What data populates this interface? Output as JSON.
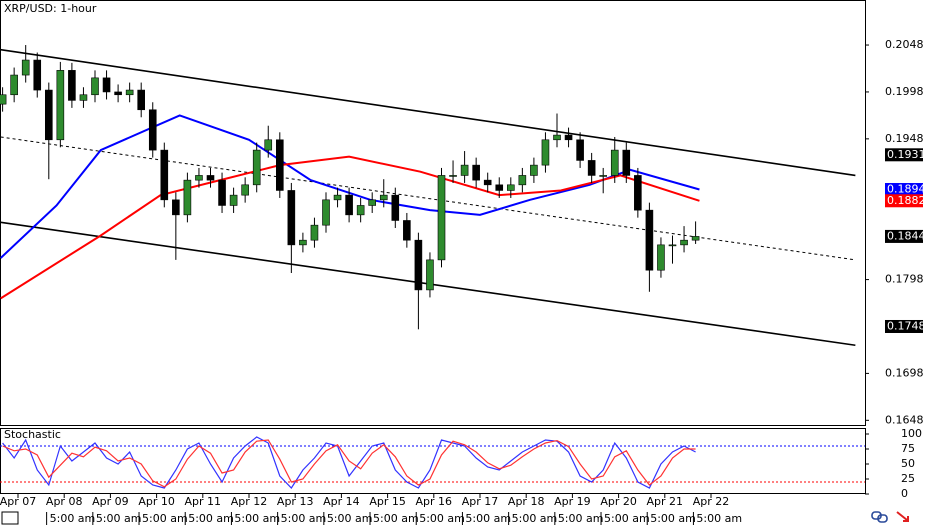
{
  "chart_data": {
    "type": "candlestick",
    "title": "XRP/USD: 1-hour",
    "x": [
      -8,
      -2,
      4,
      10,
      16,
      22,
      28,
      34,
      40,
      46,
      52,
      58,
      64,
      70,
      76,
      82,
      88,
      94,
      100,
      106,
      112,
      118,
      124,
      130,
      136,
      142,
      148,
      154,
      160,
      166,
      172,
      178,
      184,
      190,
      196,
      202,
      208,
      214,
      220,
      226,
      232,
      238,
      244,
      250,
      256,
      262,
      268,
      274,
      280,
      286,
      292,
      298,
      304,
      310,
      316,
      322,
      328,
      334,
      340,
      346,
      352
    ],
    "open": [
      0.1985,
      0.1995,
      0.2016,
      0.2032,
      0.2,
      0.1947,
      0.2021,
      0.1989,
      0.1995,
      0.2013,
      0.1998,
      0.1995,
      0.2,
      0.1979,
      0.1936,
      0.1883,
      0.1867,
      0.1904,
      0.1909,
      0.1904,
      0.1877,
      0.1888,
      0.1899,
      0.1936,
      0.1947,
      0.1893,
      0.1835,
      0.184,
      0.1856,
      0.1883,
      0.1888,
      0.1867,
      0.1877,
      0.1883,
      0.1888,
      0.1861,
      0.184,
      0.1787,
      0.1819,
      0.1909,
      0.1909,
      0.192,
      0.1904,
      0.1899,
      0.1893,
      0.1899,
      0.1909,
      0.192,
      0.1947,
      0.1952,
      0.1947,
      0.1925,
      0.1909,
      0.1909,
      0.1936,
      0.1909,
      0.1872,
      0.1808,
      0.1835,
      0.1835,
      0.184
    ],
    "high": [
      0.2003,
      0.2024,
      0.2048,
      0.204,
      0.2008,
      0.203,
      0.2029,
      0.2003,
      0.2021,
      0.2021,
      0.2006,
      0.2008,
      0.2008,
      0.1987,
      0.1944,
      0.1891,
      0.1912,
      0.1917,
      0.1917,
      0.1912,
      0.1896,
      0.1907,
      0.1944,
      0.1962,
      0.1955,
      0.1901,
      0.1848,
      0.1864,
      0.1891,
      0.1896,
      0.1896,
      0.1885,
      0.1891,
      0.1905,
      0.1896,
      0.1869,
      0.1848,
      0.1827,
      0.1917,
      0.1925,
      0.1935,
      0.1928,
      0.1912,
      0.1907,
      0.1907,
      0.1917,
      0.1928,
      0.1955,
      0.1975,
      0.196,
      0.1955,
      0.1933,
      0.1917,
      0.195,
      0.1944,
      0.1917,
      0.188,
      0.1843,
      0.1845,
      0.1855,
      0.186
    ],
    "low": [
      0.1977,
      0.1987,
      0.2008,
      0.1992,
      0.1905,
      0.1939,
      0.1981,
      0.1981,
      0.1987,
      0.199,
      0.1987,
      0.1987,
      0.1971,
      0.1928,
      0.1875,
      0.1819,
      0.1859,
      0.1896,
      0.1896,
      0.1869,
      0.1869,
      0.188,
      0.1891,
      0.1928,
      0.1885,
      0.1805,
      0.1827,
      0.1832,
      0.1848,
      0.1875,
      0.1859,
      0.1859,
      0.1869,
      0.1875,
      0.1853,
      0.1832,
      0.1745,
      0.1779,
      0.1811,
      0.1901,
      0.1901,
      0.1896,
      0.1891,
      0.1885,
      0.1885,
      0.1891,
      0.1901,
      0.1912,
      0.1939,
      0.1939,
      0.1917,
      0.1901,
      0.189,
      0.1901,
      0.1901,
      0.1864,
      0.1785,
      0.18,
      0.1815,
      0.1827,
      0.1836
    ],
    "close": [
      0.1995,
      0.2016,
      0.2032,
      0.2,
      0.1947,
      0.2021,
      0.1989,
      0.1995,
      0.2013,
      0.1998,
      0.1995,
      0.2,
      0.1979,
      0.1936,
      0.1883,
      0.1867,
      0.1904,
      0.1909,
      0.1904,
      0.1877,
      0.1888,
      0.1899,
      0.1936,
      0.1947,
      0.1893,
      0.1835,
      0.184,
      0.1856,
      0.1883,
      0.1888,
      0.1867,
      0.1877,
      0.1883,
      0.1888,
      0.1861,
      0.184,
      0.1787,
      0.1819,
      0.1909,
      0.1909,
      0.192,
      0.1904,
      0.1899,
      0.1893,
      0.1899,
      0.1909,
      0.192,
      0.1947,
      0.1952,
      0.1947,
      0.1925,
      0.1909,
      0.1909,
      0.1936,
      0.1909,
      0.1872,
      0.1808,
      0.1835,
      0.1835,
      0.184,
      0.1844
    ],
    "up_color": "#2e8b2e",
    "down_color": "#000000",
    "xlim": [
      -9.35,
      440
    ],
    "ylim": [
      0.1643,
      0.2096
    ],
    "yticks": [
      0.2048,
      0.1998,
      0.1948,
      0.1798,
      0.1698,
      0.1648
    ],
    "xticks": [
      {
        "value": 0,
        "label": "Apr 07"
      },
      {
        "value": 24,
        "label": "Apr 08"
      },
      {
        "value": 48,
        "label": "Apr 09"
      },
      {
        "value": 72,
        "label": "Apr 10"
      },
      {
        "value": 96,
        "label": "Apr 11"
      },
      {
        "value": 120,
        "label": "Apr 12"
      },
      {
        "value": 144,
        "label": "Apr 13"
      },
      {
        "value": 168,
        "label": "Apr 14"
      },
      {
        "value": 192,
        "label": "Apr 15"
      },
      {
        "value": 216,
        "label": "Apr 16"
      },
      {
        "value": 240,
        "label": "Apr 17"
      },
      {
        "value": 264,
        "label": "Apr 18"
      },
      {
        "value": 288,
        "label": "Apr 19"
      },
      {
        "value": 312,
        "label": "Apr 20"
      },
      {
        "value": 336,
        "label": "Apr 21"
      },
      {
        "value": 360,
        "label": "Apr 22"
      }
    ],
    "time_ticks": [
      {
        "value": 5,
        "label": "5:00 am"
      },
      {
        "value": 29,
        "label": "5:00 am"
      },
      {
        "value": 53,
        "label": "5:00 am"
      },
      {
        "value": 77,
        "label": "5:00 am"
      },
      {
        "value": 101,
        "label": "5:00 am"
      },
      {
        "value": 125,
        "label": "5:00 am"
      },
      {
        "value": 149,
        "label": "5:00 am"
      },
      {
        "value": 173,
        "label": "5:00 am"
      },
      {
        "value": 197,
        "label": "5:00 am"
      },
      {
        "value": 221,
        "label": "5:00 am"
      },
      {
        "value": 245,
        "label": "5:00 am"
      },
      {
        "value": 269,
        "label": "5:00 am"
      },
      {
        "value": 293,
        "label": "5:00 am"
      },
      {
        "value": 317,
        "label": "5:00 am"
      },
      {
        "value": 341,
        "label": "5:00 am"
      }
    ],
    "overlays": [
      {
        "color": "#0000ff",
        "x": [
          -9,
          20,
          43,
          84,
          120,
          152,
          183,
          214,
          240,
          266,
          297,
          318,
          354
        ],
        "values": [
          0.1821,
          0.1877,
          0.1936,
          0.1973,
          0.1947,
          0.1904,
          0.1883,
          0.1872,
          0.1867,
          0.1883,
          0.1899,
          0.1915,
          0.1894
        ]
      },
      {
        "color": "#ff0000",
        "x": [
          -9,
          43,
          74,
          105,
          136,
          172,
          209,
          250,
          282,
          313,
          354
        ],
        "values": [
          0.1778,
          0.1845,
          0.1888,
          0.1904,
          0.192,
          0.1929,
          0.1913,
          0.1888,
          0.1893,
          0.1909,
          0.1882
        ]
      }
    ],
    "trendlines": [
      {
        "style": "solid",
        "x": [
          -9,
          435
        ],
        "values": [
          0.2043,
          0.1909
        ]
      },
      {
        "style": "dotted",
        "x": [
          -9,
          435
        ],
        "values": [
          0.195,
          0.1819
        ]
      },
      {
        "style": "solid",
        "x": [
          -9,
          435
        ],
        "values": [
          0.1859,
          0.1728
        ]
      }
    ],
    "price_labels": [
      {
        "value": 0.1931,
        "color": "#000000"
      },
      {
        "value": 0.1894,
        "color": "#0000ff"
      },
      {
        "value": 0.1882,
        "color": "#ff0000"
      },
      {
        "value": 0.1844,
        "color": "#000000"
      },
      {
        "value": 0.1748,
        "color": "#000000"
      }
    ],
    "stochastic": {
      "title": "Stochastic",
      "ylim": [
        0,
        100
      ],
      "yticks": [
        100,
        75,
        50,
        25,
        0
      ],
      "levels": [
        {
          "value": 80,
          "color": "#0000ff"
        },
        {
          "value": 20,
          "color": "#ff0000"
        }
      ],
      "series": [
        {
          "color": "#3333ff",
          "values": [
            85,
            60,
            90,
            40,
            15,
            80,
            55,
            70,
            85,
            60,
            50,
            70,
            30,
            15,
            10,
            40,
            75,
            85,
            50,
            20,
            60,
            80,
            95,
            85,
            30,
            10,
            40,
            60,
            85,
            80,
            30,
            55,
            80,
            85,
            40,
            20,
            10,
            40,
            90,
            85,
            80,
            60,
            45,
            40,
            55,
            70,
            80,
            90,
            88,
            70,
            30,
            20,
            40,
            85,
            60,
            20,
            10,
            50,
            70,
            80,
            70
          ]
        },
        {
          "color": "#ff3333",
          "values": [
            80,
            72,
            75,
            65,
            28,
            48,
            68,
            62,
            78,
            72,
            55,
            60,
            50,
            22,
            12,
            25,
            58,
            80,
            68,
            35,
            40,
            70,
            88,
            90,
            58,
            20,
            25,
            50,
            72,
            82,
            55,
            42,
            68,
            82,
            62,
            30,
            15,
            25,
            65,
            88,
            82,
            70,
            52,
            42,
            48,
            62,
            75,
            85,
            89,
            79,
            50,
            25,
            30,
            62,
            72,
            40,
            15,
            30,
            60,
            75,
            75
          ]
        }
      ]
    }
  }
}
